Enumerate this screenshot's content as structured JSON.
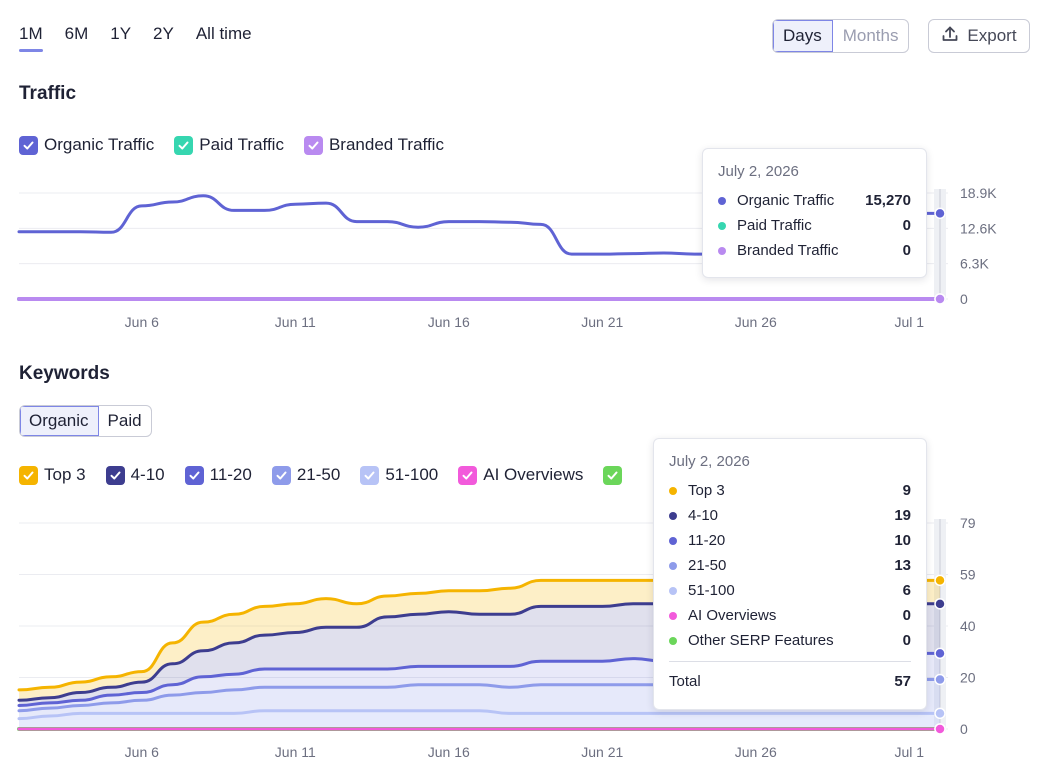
{
  "period_tabs": [
    {
      "label": "1M",
      "active": true
    },
    {
      "label": "6M",
      "active": false
    },
    {
      "label": "1Y",
      "active": false
    },
    {
      "label": "2Y",
      "active": false
    },
    {
      "label": "All time",
      "active": false
    }
  ],
  "granularity": {
    "days_label": "Days",
    "months_label": "Months",
    "selected": "Days"
  },
  "export_label": "Export",
  "traffic": {
    "title": "Traffic",
    "legend": [
      {
        "label": "Organic Traffic",
        "color": "#5f63d4",
        "checked": true
      },
      {
        "label": "Paid Traffic",
        "color": "#36d6b0",
        "checked": true
      },
      {
        "label": "Branded Traffic",
        "color": "#b98af0",
        "checked": true
      }
    ],
    "tooltip": {
      "date": "July 2, 2026",
      "rows": [
        {
          "label": "Organic Traffic",
          "value": "15,270",
          "color": "#5f63d4"
        },
        {
          "label": "Paid Traffic",
          "value": "0",
          "color": "#36d6b0"
        },
        {
          "label": "Branded Traffic",
          "value": "0",
          "color": "#b98af0"
        }
      ]
    }
  },
  "keywords": {
    "title": "Keywords",
    "type_tabs": [
      {
        "label": "Organic",
        "active": true
      },
      {
        "label": "Paid",
        "active": false
      }
    ],
    "legend": [
      {
        "label": "Top 3",
        "color": "#f5b400",
        "checked": true
      },
      {
        "label": "4-10",
        "color": "#3d3d8f",
        "checked": true
      },
      {
        "label": "11-20",
        "color": "#5f63d4",
        "checked": true
      },
      {
        "label": "21-50",
        "color": "#8e9bea",
        "checked": true
      },
      {
        "label": "51-100",
        "color": "#b7c3f6",
        "checked": true
      },
      {
        "label": "AI Overviews",
        "color": "#f25adb",
        "checked": true
      },
      {
        "label": "",
        "color": "#6bd65a",
        "checked": true
      }
    ],
    "tooltip": {
      "date": "July 2, 2026",
      "rows": [
        {
          "label": "Top 3",
          "value": "9",
          "color": "#f5b400"
        },
        {
          "label": "4-10",
          "value": "19",
          "color": "#3d3d8f"
        },
        {
          "label": "11-20",
          "value": "10",
          "color": "#5f63d4"
        },
        {
          "label": "21-50",
          "value": "13",
          "color": "#8e9bea"
        },
        {
          "label": "51-100",
          "value": "6",
          "color": "#b7c3f6"
        },
        {
          "label": "AI Overviews",
          "value": "0",
          "color": "#f25adb"
        },
        {
          "label": "Other SERP Features",
          "value": "0",
          "color": "#6bd65a"
        }
      ],
      "total_label": "Total",
      "total_value": "57"
    }
  },
  "chart_data": [
    {
      "type": "line",
      "title": "Traffic",
      "x": [
        "Jun 2",
        "Jun 3",
        "Jun 4",
        "Jun 5",
        "Jun 6",
        "Jun 7",
        "Jun 8",
        "Jun 9",
        "Jun 10",
        "Jun 11",
        "Jun 12",
        "Jun 13",
        "Jun 14",
        "Jun 15",
        "Jun 16",
        "Jun 17",
        "Jun 18",
        "Jun 19",
        "Jun 20",
        "Jun 21",
        "Jun 22",
        "Jun 23",
        "Jun 24",
        "Jun 25",
        "Jun 26",
        "Jun 27",
        "Jun 28",
        "Jun 29",
        "Jun 30",
        "Jul 1",
        "Jul 2"
      ],
      "x_tick_labels": [
        "Jun 6",
        "Jun 11",
        "Jun 16",
        "Jun 21",
        "Jun 26",
        "Jul 1"
      ],
      "y_tick_labels": [
        "0",
        "6.3K",
        "12.6K",
        "18.9K"
      ],
      "ylim": [
        0,
        18900
      ],
      "grid": true,
      "series": [
        {
          "name": "Organic Traffic",
          "color": "#5f63d4",
          "values": [
            12000,
            12000,
            12000,
            11900,
            16600,
            17300,
            18400,
            15800,
            15800,
            16900,
            17100,
            13800,
            13800,
            12800,
            13800,
            13800,
            13700,
            13300,
            8000,
            8000,
            8100,
            8200,
            8000,
            8000,
            15270,
            15270,
            15270,
            15270,
            15270,
            15270,
            15270
          ]
        },
        {
          "name": "Paid Traffic",
          "color": "#36d6b0",
          "values": [
            0,
            0,
            0,
            0,
            0,
            0,
            0,
            0,
            0,
            0,
            0,
            0,
            0,
            0,
            0,
            0,
            0,
            0,
            0,
            0,
            0,
            0,
            0,
            0,
            0,
            0,
            0,
            0,
            0,
            0,
            0
          ]
        },
        {
          "name": "Branded Traffic",
          "color": "#b98af0",
          "values": [
            0,
            0,
            0,
            0,
            0,
            0,
            0,
            0,
            0,
            0,
            0,
            0,
            0,
            0,
            0,
            0,
            0,
            0,
            0,
            0,
            0,
            0,
            0,
            0,
            0,
            0,
            0,
            0,
            0,
            0,
            0
          ]
        }
      ],
      "highlight_point": {
        "x": "Jul 2",
        "value": 15270
      }
    },
    {
      "type": "area",
      "title": "Keywords",
      "stacked": true,
      "x": [
        "Jun 2",
        "Jun 3",
        "Jun 4",
        "Jun 5",
        "Jun 6",
        "Jun 7",
        "Jun 8",
        "Jun 9",
        "Jun 10",
        "Jun 11",
        "Jun 12",
        "Jun 13",
        "Jun 14",
        "Jun 15",
        "Jun 16",
        "Jun 17",
        "Jun 18",
        "Jun 19",
        "Jun 20",
        "Jun 21",
        "Jun 22",
        "Jun 23",
        "Jun 24",
        "Jun 25",
        "Jun 26",
        "Jun 27",
        "Jun 28",
        "Jun 29",
        "Jun 30",
        "Jul 1",
        "Jul 2"
      ],
      "x_tick_labels": [
        "Jun 6",
        "Jun 11",
        "Jun 16",
        "Jun 21",
        "Jun 26",
        "Jul 1"
      ],
      "y_tick_labels": [
        "0",
        "20",
        "40",
        "59",
        "79"
      ],
      "ylim": [
        0,
        79
      ],
      "grid": true,
      "series": [
        {
          "name": "Other SERP Features",
          "color": "#6bd65a",
          "values": [
            0,
            0,
            0,
            0,
            0,
            0,
            0,
            0,
            0,
            0,
            0,
            0,
            0,
            0,
            0,
            0,
            0,
            0,
            0,
            0,
            0,
            0,
            0,
            0,
            0,
            0,
            0,
            0,
            0,
            0,
            0
          ]
        },
        {
          "name": "AI Overviews",
          "color": "#f25adb",
          "values": [
            0,
            0,
            0,
            0,
            0,
            0,
            0,
            0,
            0,
            0,
            0,
            0,
            0,
            0,
            0,
            0,
            0,
            0,
            0,
            0,
            0,
            0,
            0,
            0,
            0,
            0,
            0,
            0,
            0,
            0,
            0
          ]
        },
        {
          "name": "51-100",
          "color": "#b7c3f6",
          "values": [
            4,
            5,
            6,
            6,
            6,
            6,
            6,
            6,
            7,
            7,
            7,
            7,
            7,
            7,
            7,
            7,
            6,
            6,
            6,
            6,
            6,
            6,
            6,
            6,
            6,
            6,
            6,
            6,
            6,
            6,
            6
          ]
        },
        {
          "name": "21-50",
          "color": "#8e9bea",
          "values": [
            3,
            3,
            3,
            4,
            5,
            7,
            8,
            9,
            9,
            9,
            9,
            9,
            9,
            10,
            10,
            10,
            10,
            11,
            11,
            11,
            11,
            11,
            11,
            11,
            12,
            12,
            12,
            12,
            13,
            13,
            13
          ]
        },
        {
          "name": "11-20",
          "color": "#5f63d4",
          "values": [
            2,
            2,
            2,
            3,
            3,
            4,
            6,
            6,
            7,
            7,
            7,
            7,
            7,
            7,
            7,
            7,
            8,
            9,
            9,
            9,
            10,
            9,
            9,
            9,
            9,
            9,
            9,
            10,
            10,
            10,
            10
          ]
        },
        {
          "name": "4-10",
          "color": "#3d3d8f",
          "values": [
            2,
            2,
            3,
            3,
            4,
            8,
            10,
            12,
            13,
            14,
            16,
            16,
            20,
            20,
            21,
            20,
            20,
            21,
            21,
            21,
            21,
            22,
            20,
            19,
            19,
            19,
            19,
            19,
            19,
            19,
            19
          ]
        },
        {
          "name": "Top 3",
          "color": "#f5b400",
          "values": [
            4,
            4,
            4,
            4,
            4,
            8,
            11,
            11,
            11,
            11,
            11,
            9,
            8,
            8,
            8,
            9,
            10,
            10,
            10,
            10,
            9,
            9,
            10,
            10,
            9,
            9,
            9,
            9,
            9,
            9,
            9
          ]
        }
      ],
      "highlight_point": {
        "x": "Jul 2",
        "total": 57
      }
    }
  ]
}
